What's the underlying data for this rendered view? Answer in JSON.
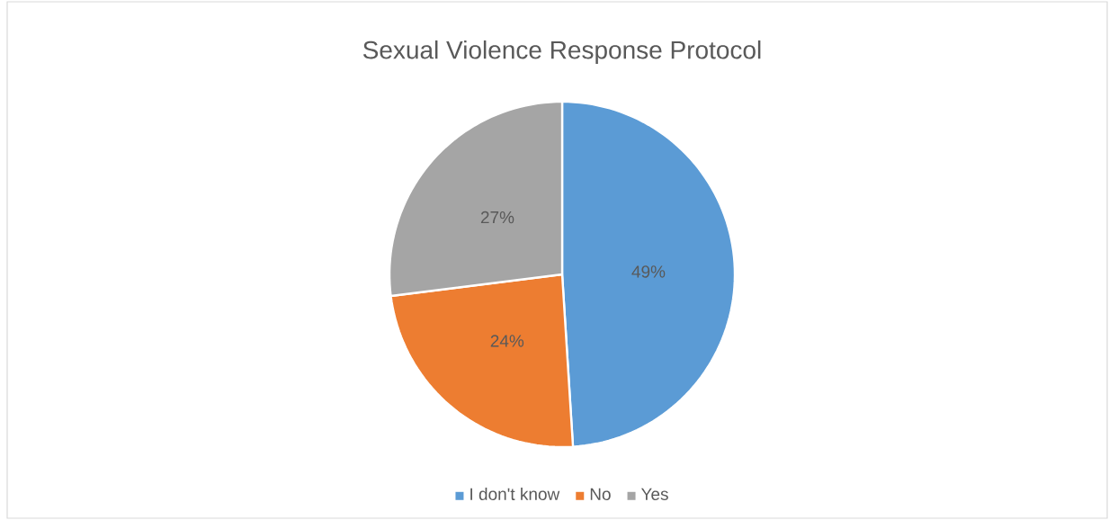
{
  "chart_data": {
    "type": "pie",
    "title": "Sexual Violence Response Protocol",
    "categories": [
      "I don't know",
      "No",
      "Yes"
    ],
    "values": [
      49,
      24,
      27
    ],
    "value_labels": [
      "49%",
      "24%",
      "27%"
    ],
    "colors": [
      "#5b9bd5",
      "#ed7d31",
      "#a5a5a5"
    ],
    "legend": "bottom"
  }
}
